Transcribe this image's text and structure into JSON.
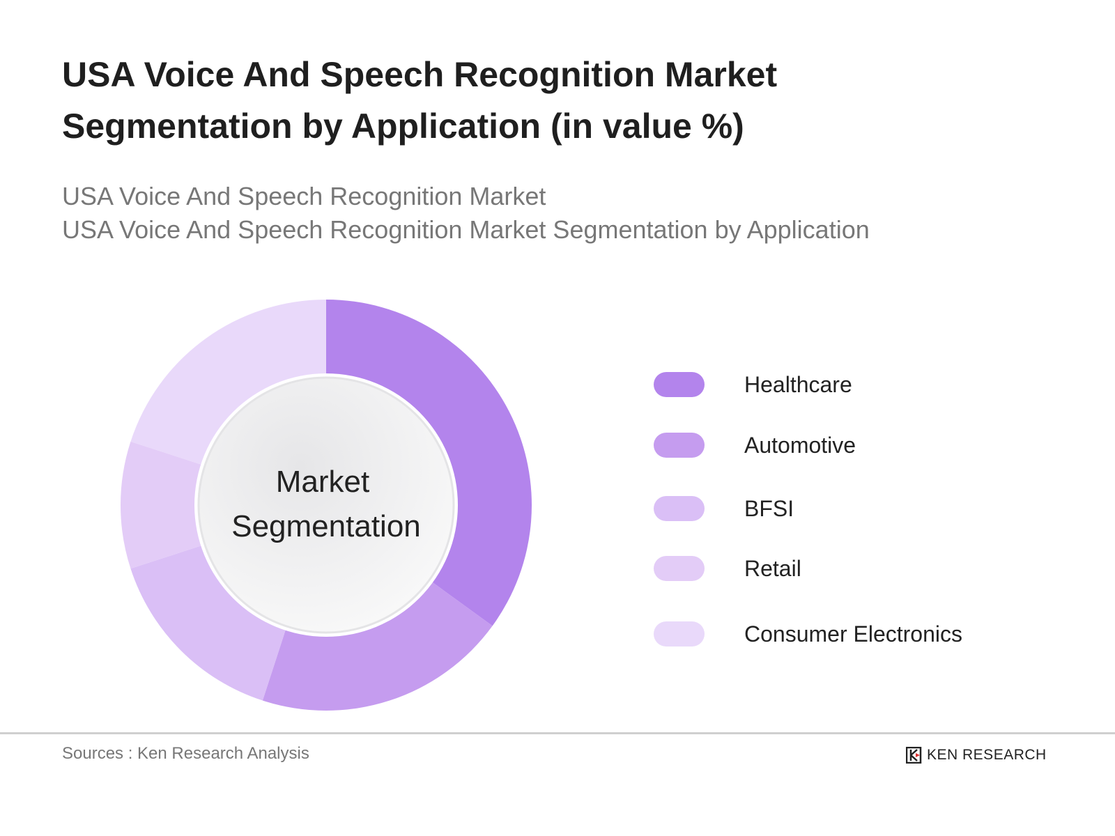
{
  "title": [
    "USA Voice And Speech Recognition Market",
    "Segmentation by Application (in value %)"
  ],
  "subtitle": [
    "USA Voice And Speech Recognition Market",
    "USA Voice And Speech Recognition Market Segmentation by Application"
  ],
  "chart_data": {
    "type": "pie",
    "variant": "donut",
    "center_label": [
      "Market",
      "Segmentation"
    ],
    "categories": [
      "Healthcare",
      "Automotive",
      "BFSI",
      "Retail",
      "Consumer Electronics"
    ],
    "values": [
      35,
      20,
      15,
      10,
      20
    ],
    "colors": [
      "#b384ec",
      "#c59cef",
      "#dabff6",
      "#e3ccf7",
      "#e9d9fa"
    ],
    "legend_position": "right"
  },
  "footer": {
    "source": "Sources : Ken Research Analysis",
    "logo_text": "KEN RESEARCH"
  }
}
